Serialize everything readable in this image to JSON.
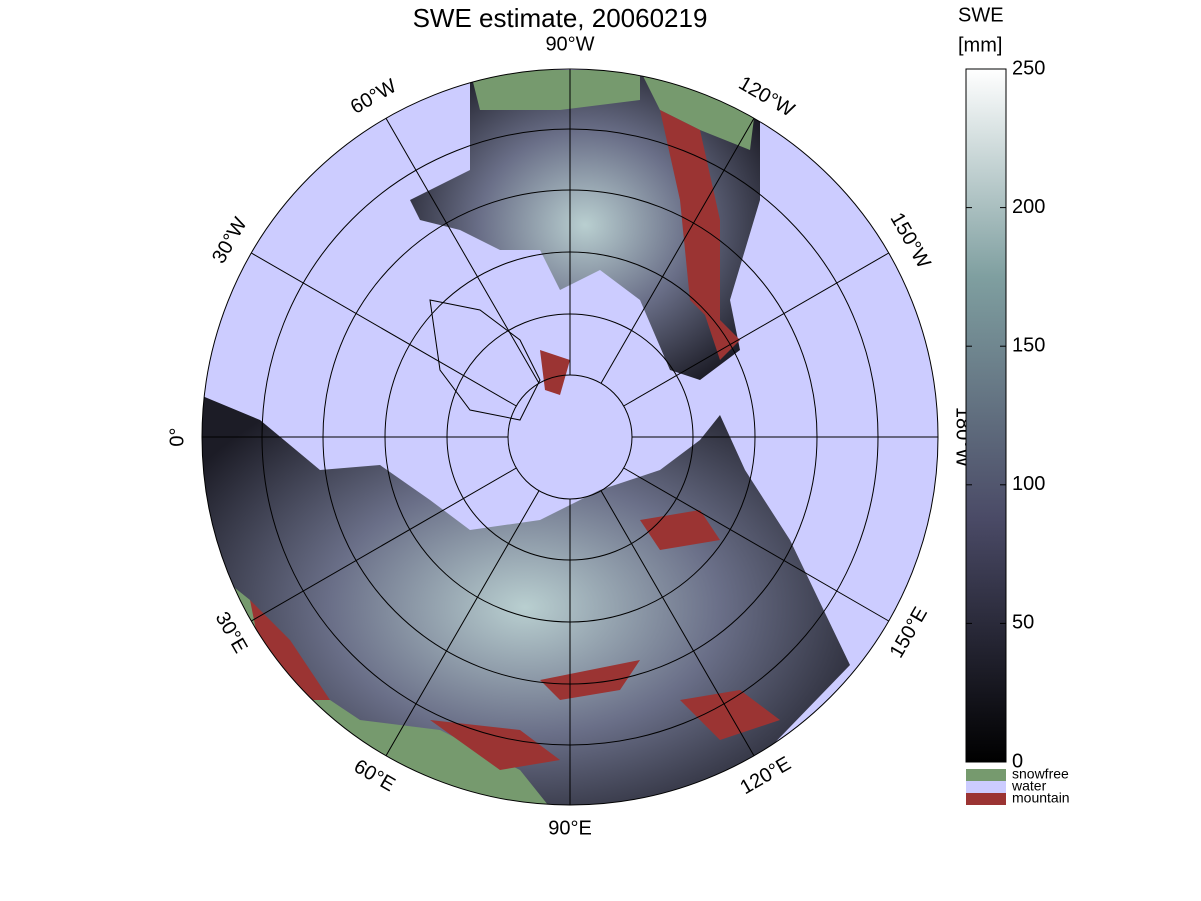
{
  "title": "SWE estimate, 20060219",
  "meridians": [
    "0°",
    "30°E",
    "60°E",
    "90°E",
    "120°E",
    "150°E",
    "180°W",
    "150°W",
    "120°W",
    "90°W",
    "60°W",
    "30°W"
  ],
  "colorbar": {
    "label": [
      "SWE",
      "[mm]"
    ],
    "lim": [
      0,
      250
    ],
    "ticks": [
      0,
      50,
      100,
      150,
      200,
      250
    ]
  },
  "legend": [
    {
      "label": "snowfree",
      "color": "#769a6e"
    },
    {
      "label": "water",
      "color": "#ccccff"
    },
    {
      "label": "mountain",
      "color": "#9b3433"
    }
  ]
}
